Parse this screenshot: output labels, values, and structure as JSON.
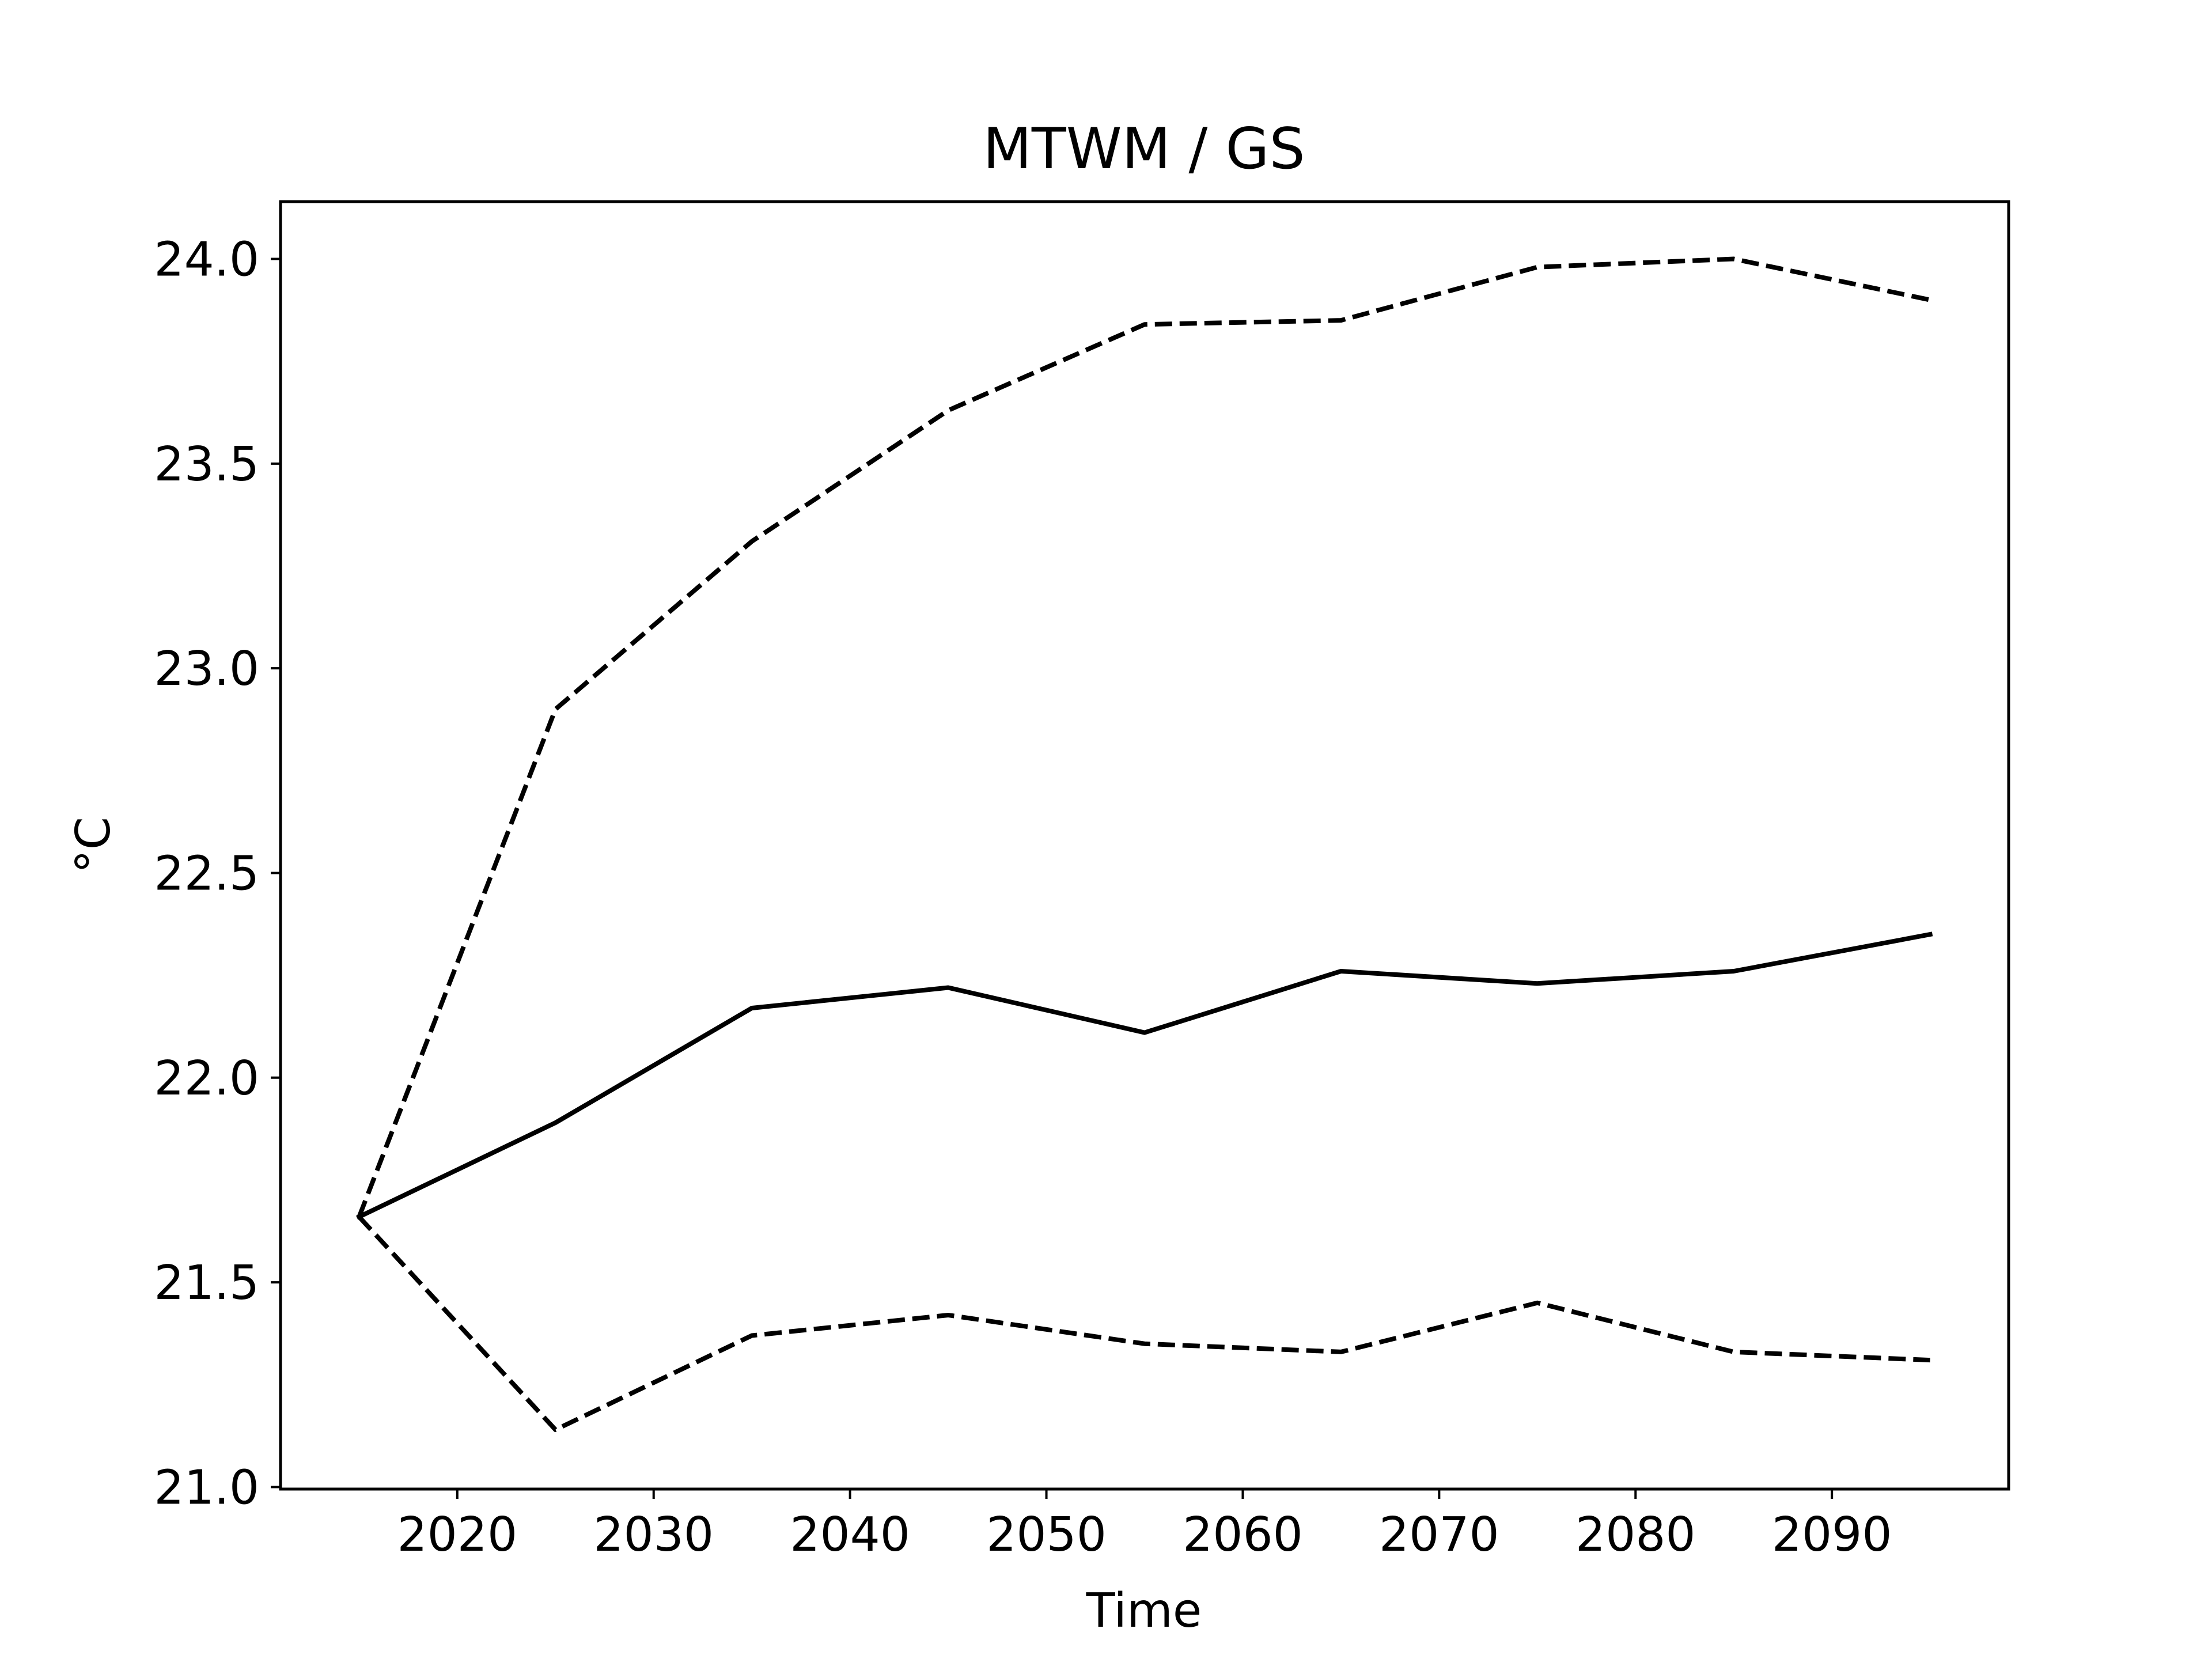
{
  "chart_data": {
    "type": "line",
    "title": "MTWM / GS",
    "xlabel": "Time",
    "ylabel": "°C",
    "x": [
      2015,
      2025,
      2035,
      2045,
      2055,
      2065,
      2075,
      2085,
      2095
    ],
    "series": [
      {
        "line_style": "solid",
        "color": "#000000",
        "values": [
          21.66,
          21.89,
          22.17,
          22.22,
          22.11,
          22.26,
          22.23,
          22.26,
          22.35
        ]
      },
      {
        "line_style": "dashed",
        "color": "#000000",
        "values": [
          21.66,
          22.9,
          23.31,
          23.63,
          23.84,
          23.85,
          23.98,
          24.0,
          23.9
        ]
      },
      {
        "line_style": "dashed",
        "color": "#000000",
        "values": [
          21.66,
          21.14,
          21.37,
          21.42,
          21.35,
          21.33,
          21.45,
          21.33,
          21.31
        ]
      }
    ],
    "xlim": [
      2011,
      2099
    ],
    "ylim": [
      20.995,
      24.14
    ],
    "xticks": [
      2020,
      2030,
      2040,
      2050,
      2060,
      2070,
      2080,
      2090
    ],
    "xtick_labels": [
      "2020",
      "2030",
      "2040",
      "2050",
      "2060",
      "2070",
      "2080",
      "2090"
    ],
    "yticks": [
      21.0,
      21.5,
      22.0,
      22.5,
      23.0,
      23.5,
      24.0
    ],
    "ytick_labels": [
      "21.0",
      "21.5",
      "22.0",
      "22.5",
      "23.0",
      "23.5",
      "24.0"
    ],
    "grid": false,
    "legend": "none"
  }
}
